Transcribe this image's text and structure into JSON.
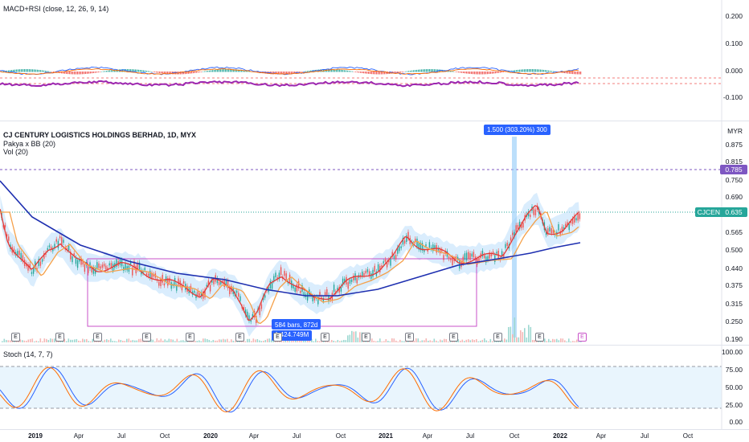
{
  "macd_pane": {
    "title": "MACD+RSI (close, 12, 26, 9, 14)",
    "y_ticks": [
      "0.200",
      "0.100",
      "0.000",
      "-0.100"
    ]
  },
  "main_pane": {
    "title": "CJ CENTURY LOGISTICS HOLDINGS BERHAD, 1D, MYX",
    "indicator_1": "Pakya x BB (20)",
    "indicator_2": "Vol (20)",
    "currency_label": "MYR",
    "y_ticks": [
      "0.875",
      "0.815",
      "0.750",
      "0.690",
      "0.565",
      "0.500",
      "0.440",
      "0.375",
      "0.315",
      "0.250",
      "0.190"
    ],
    "level_tag": "0.785",
    "symbol_tag": "CJCEN",
    "price_tag": "0.635",
    "measure_badge": "1.500 (303.20%) 300",
    "range_badge_line1": "584 bars, 872d",
    "range_badge_line2": "1 424.749M",
    "earnings_marker": "E",
    "colors": {
      "up": "#26a69a",
      "down": "#ef5350",
      "ma_fast": "#e53935",
      "ma_mid": "#f5a049",
      "ma_slow": "#1e2fb0",
      "band": "#bbdefb",
      "box": "#c850c8",
      "level": "#7e57c2"
    }
  },
  "stoch_pane": {
    "title": "Stoch (14, 7, 7)",
    "y_ticks": [
      "100.00",
      "75.00",
      "50.00",
      "25.00",
      "0.00"
    ]
  },
  "x_axis": {
    "ticks": [
      "2019",
      "Apr",
      "Jul",
      "Oct",
      "2020",
      "Apr",
      "Jul",
      "Oct",
      "2021",
      "Apr",
      "Jul",
      "Oct",
      "2022",
      "Apr",
      "Jul",
      "Oct"
    ]
  }
}
